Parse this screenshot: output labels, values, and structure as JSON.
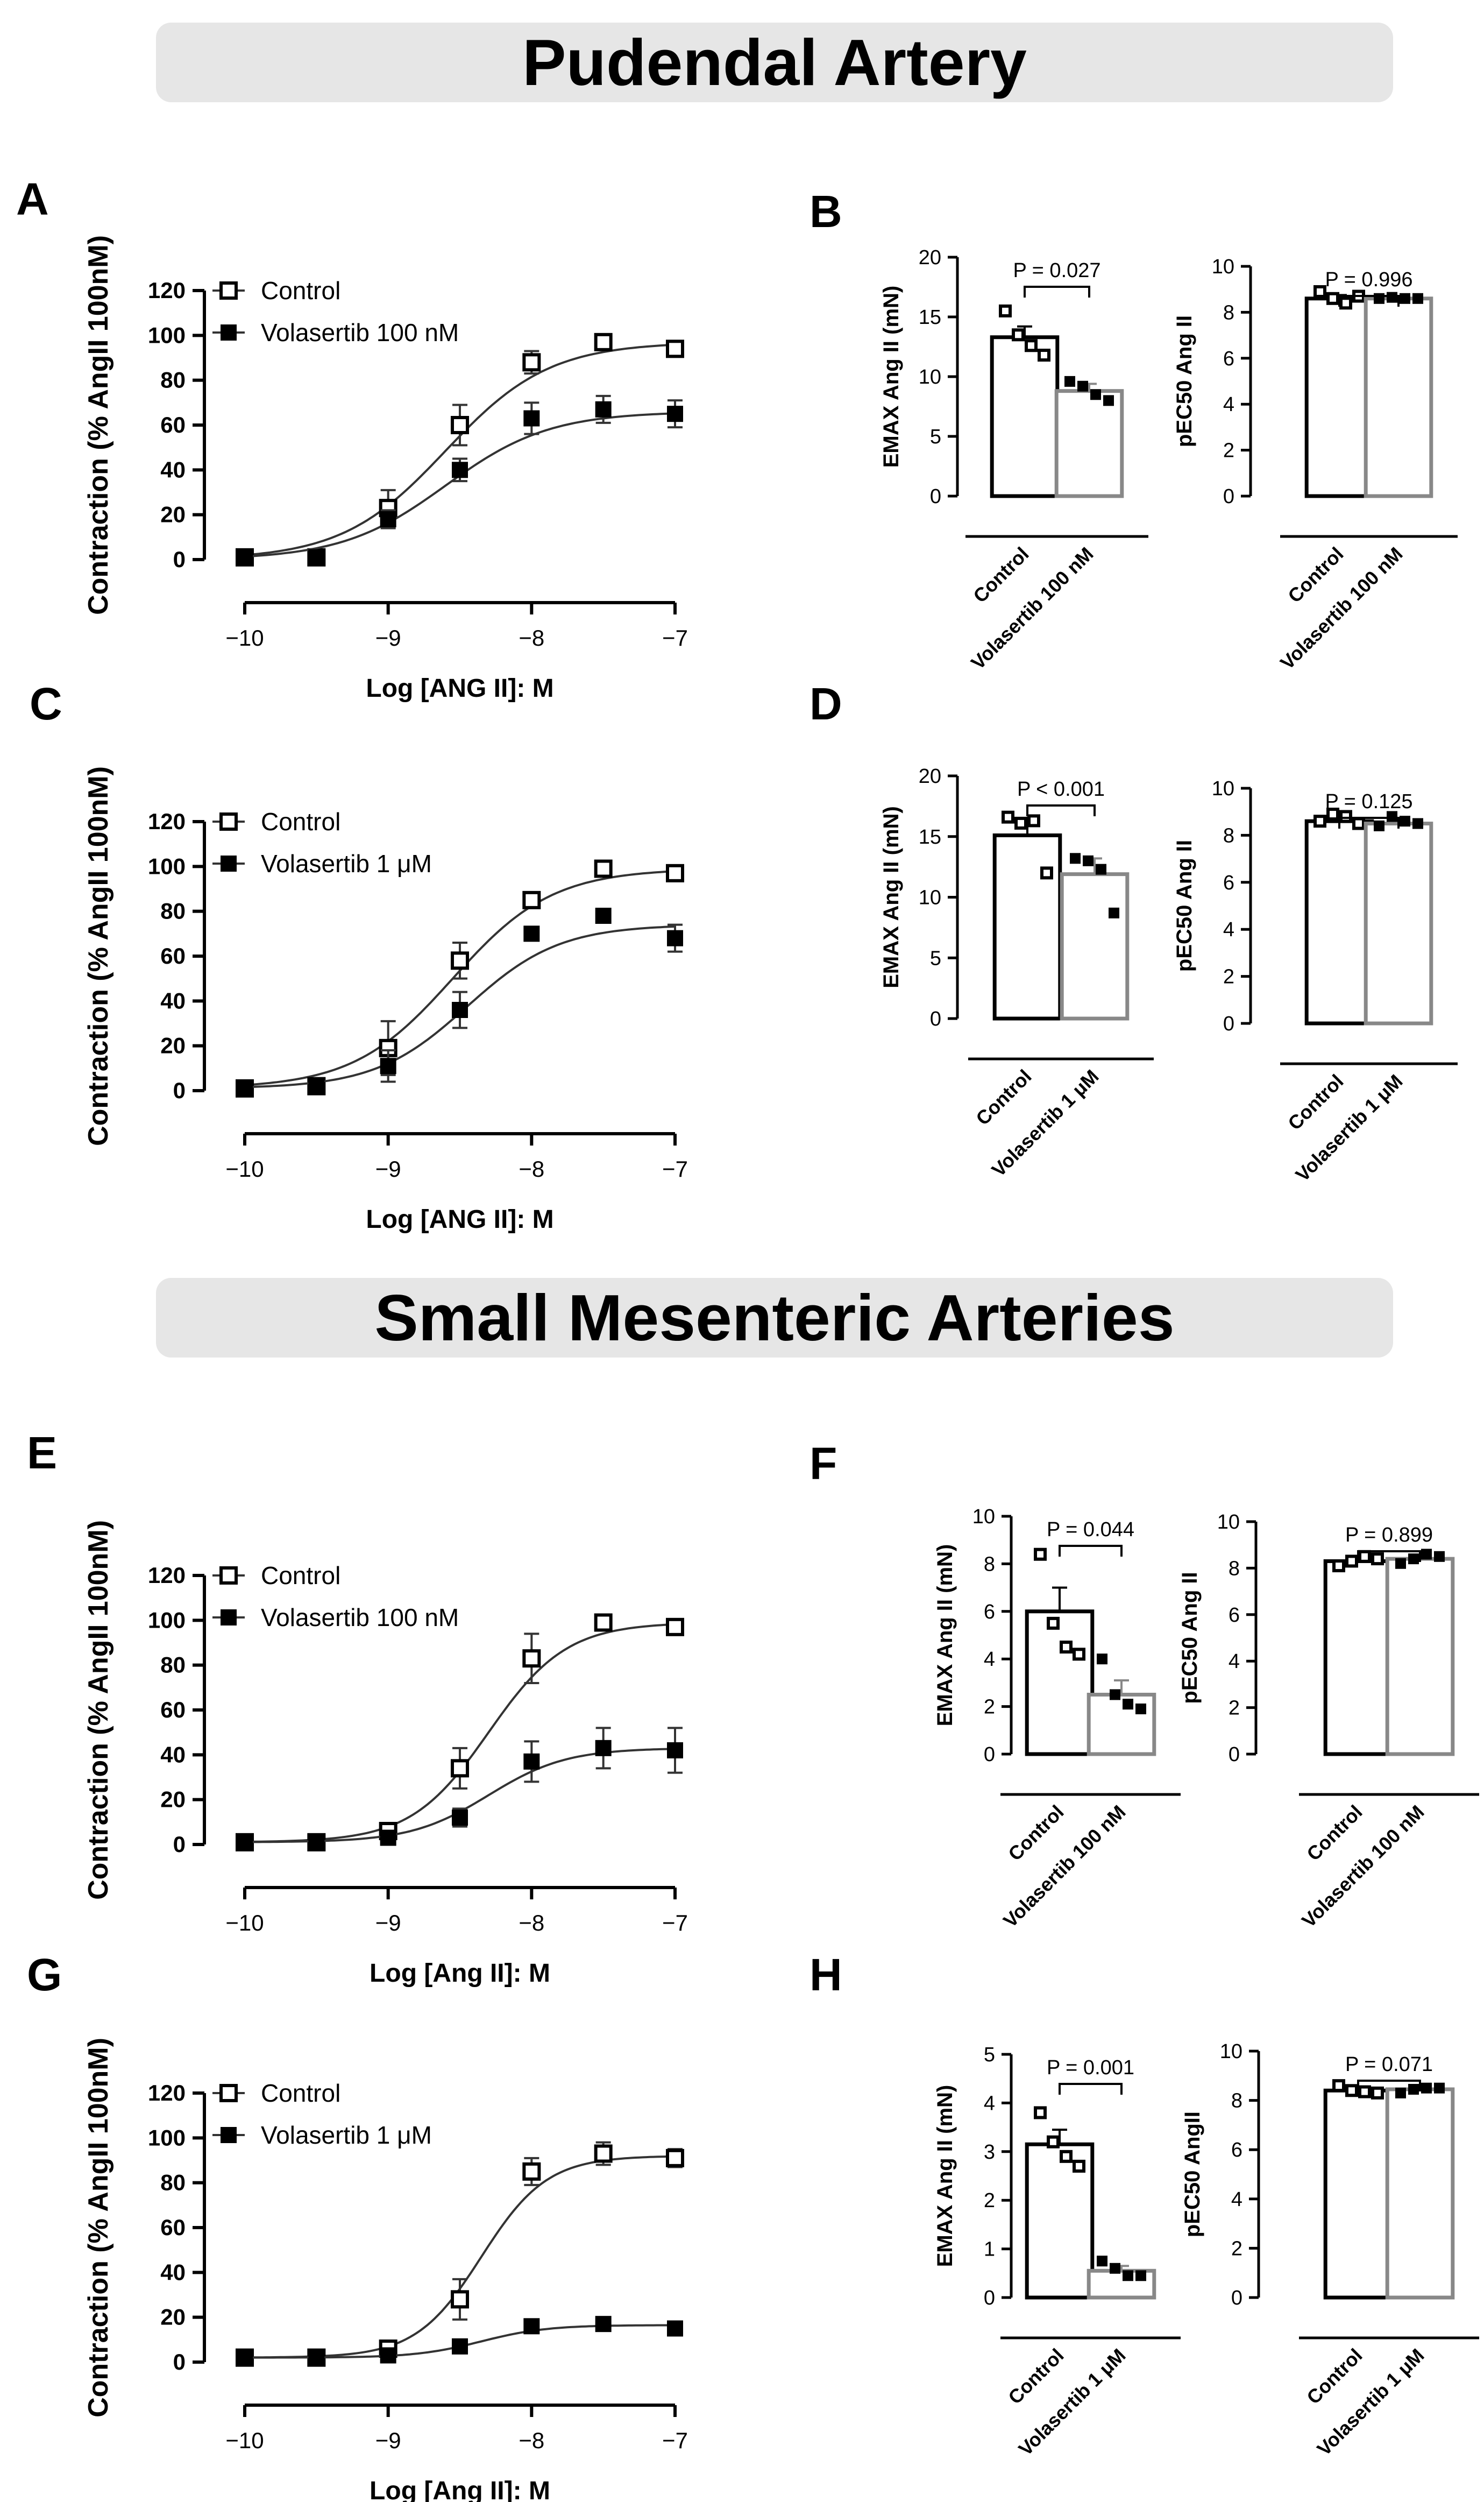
{
  "sections": {
    "top_title": "Pudendal Artery",
    "middle_title": "Small Mesenteric Arteries"
  },
  "panel_letters": [
    "A",
    "B",
    "C",
    "D",
    "E",
    "F",
    "G",
    "H"
  ],
  "chart_data": [
    {
      "panel": "A",
      "type": "line",
      "xlabel": "Log [ANG II]: M",
      "ylabel": "Contraction (% AngII 100nM)",
      "xlim": [
        -10,
        -7
      ],
      "ylim": [
        0,
        120
      ],
      "x_ticks": [
        "−10",
        "−9",
        "−8",
        "−7"
      ],
      "y_ticks": [
        "0",
        "20",
        "40",
        "60",
        "80",
        "100",
        "120"
      ],
      "legend_position": "top-left",
      "x": [
        -10,
        -9.5,
        -9,
        -8.5,
        -8,
        -7.5,
        -7
      ],
      "series": [
        {
          "name": "Control",
          "marker": "open-square",
          "values": [
            1,
            1,
            23,
            60,
            88,
            97,
            94
          ],
          "errors": [
            0,
            0,
            8,
            9,
            5,
            3,
            3
          ],
          "fit": {
            "bottom": 0,
            "top": 97,
            "logEC50": -8.6,
            "hill": 1.2
          }
        },
        {
          "name": "Volasertib 100 nM",
          "marker": "filled-square",
          "values": [
            1,
            1,
            18,
            40,
            63,
            67,
            65
          ],
          "errors": [
            0,
            0,
            4,
            5,
            7,
            6,
            6
          ],
          "fit": {
            "bottom": 0,
            "top": 66,
            "logEC50": -8.6,
            "hill": 1.2
          }
        }
      ]
    },
    {
      "panel": "B-left",
      "type": "bar",
      "ylabel": "EMAX Ang II (mN)",
      "ylim": [
        0,
        20
      ],
      "y_ticks": [
        "0",
        "5",
        "10",
        "15",
        "20"
      ],
      "categories": [
        "Control",
        "Volasertib 100 nM"
      ],
      "values": [
        13.3,
        8.8
      ],
      "errors": [
        0.9,
        0.6
      ],
      "points": [
        [
          15.5,
          13.5,
          12.6,
          11.8
        ],
        [
          9.6,
          9.2,
          8.5,
          8.0
        ]
      ],
      "pvalue": "P = 0.027"
    },
    {
      "panel": "B-right",
      "type": "bar",
      "ylabel": "pEC50 Ang II",
      "ylim": [
        0,
        10
      ],
      "y_ticks": [
        "0",
        "2",
        "4",
        "6",
        "8",
        "10"
      ],
      "categories": [
        "Control",
        "Volasertib 100 nM"
      ],
      "values": [
        8.6,
        8.6
      ],
      "errors": [
        0.15,
        0.05
      ],
      "points": [
        [
          8.9,
          8.6,
          8.4,
          8.7
        ],
        [
          8.6,
          8.65,
          8.6,
          8.6
        ]
      ],
      "pvalue": "P = 0.996"
    },
    {
      "panel": "C",
      "type": "line",
      "xlabel": "Log [ANG II]: M",
      "ylabel": "Contraction (% AngII 100nM)",
      "xlim": [
        -10,
        -7
      ],
      "ylim": [
        0,
        120
      ],
      "x_ticks": [
        "−10",
        "−9",
        "−8",
        "−7"
      ],
      "y_ticks": [
        "0",
        "20",
        "40",
        "60",
        "80",
        "100",
        "120"
      ],
      "legend_position": "top-left",
      "x": [
        -10,
        -9.5,
        -9,
        -8.5,
        -8,
        -7.5,
        -7
      ],
      "series": [
        {
          "name": "Control",
          "marker": "open-square",
          "values": [
            1,
            2,
            19,
            58,
            85,
            99,
            97
          ],
          "errors": [
            0,
            0,
            12,
            8,
            3,
            2,
            2
          ],
          "fit": {
            "bottom": 1,
            "top": 99,
            "logEC50": -8.55,
            "hill": 1.25
          }
        },
        {
          "name": "Volasertib 1 μM",
          "marker": "filled-square",
          "values": [
            1,
            2,
            11,
            36,
            70,
            78,
            68
          ],
          "errors": [
            0,
            0,
            7,
            8,
            3,
            2,
            6
          ],
          "fit": {
            "bottom": 1,
            "top": 74,
            "logEC50": -8.45,
            "hill": 1.35
          }
        }
      ]
    },
    {
      "panel": "D-left",
      "type": "bar",
      "ylabel": "EMAX Ang II (mN)",
      "ylim": [
        0,
        20
      ],
      "y_ticks": [
        "0",
        "5",
        "10",
        "15",
        "20"
      ],
      "categories": [
        "Control",
        "Volasertib 1 μM"
      ],
      "values": [
        15.1,
        11.9
      ],
      "errors": [
        1.2,
        1.3
      ],
      "points": [
        [
          16.6,
          16.1,
          16.3,
          12.0
        ],
        [
          13.2,
          13.0,
          12.3,
          8.7
        ]
      ],
      "pvalue": "P < 0.001"
    },
    {
      "panel": "D-right",
      "type": "bar",
      "ylabel": "pEC50 Ang II",
      "ylim": [
        0,
        10
      ],
      "y_ticks": [
        "0",
        "2",
        "4",
        "6",
        "8",
        "10"
      ],
      "categories": [
        "Control",
        "Volasertib 1 μM"
      ],
      "values": [
        8.6,
        8.5
      ],
      "errors": [
        0.15,
        0.15
      ],
      "points": [
        [
          8.6,
          8.9,
          8.8,
          8.5
        ],
        [
          8.4,
          8.8,
          8.6,
          8.5
        ]
      ],
      "pvalue": "P = 0.125"
    },
    {
      "panel": "E",
      "type": "line",
      "xlabel": "Log [Ang II]: M",
      "ylabel": "Contraction (% AngII 100nM)",
      "xlim": [
        -10,
        -7
      ],
      "ylim": [
        0,
        120
      ],
      "x_ticks": [
        "−10",
        "−9",
        "−8",
        "−7"
      ],
      "y_ticks": [
        "0",
        "20",
        "40",
        "60",
        "80",
        "100",
        "120"
      ],
      "legend_position": "top-left",
      "x": [
        -10,
        -9.5,
        -9,
        -8.5,
        -8,
        -7.5,
        -7
      ],
      "series": [
        {
          "name": "Control",
          "marker": "open-square",
          "values": [
            1,
            1,
            6,
            34,
            83,
            99,
            97
          ],
          "errors": [
            0,
            0,
            2,
            9,
            11,
            2,
            2
          ],
          "fit": {
            "bottom": 1,
            "top": 99,
            "logEC50": -8.3,
            "hill": 1.6
          }
        },
        {
          "name": "Volasertib 100 nM",
          "marker": "filled-square",
          "values": [
            1,
            1,
            3,
            12,
            37,
            43,
            42
          ],
          "errors": [
            0,
            0,
            1,
            4,
            9,
            9,
            10
          ],
          "fit": {
            "bottom": 1,
            "top": 43,
            "logEC50": -8.3,
            "hill": 1.6
          }
        }
      ]
    },
    {
      "panel": "F-left",
      "type": "bar",
      "ylabel": "EMAX Ang II (mN)",
      "ylim": [
        0,
        10
      ],
      "y_ticks": [
        "0",
        "2",
        "4",
        "6",
        "8",
        "10"
      ],
      "categories": [
        "Control",
        "Volasertib 100 nM"
      ],
      "values": [
        6.0,
        2.5
      ],
      "errors": [
        1.0,
        0.6
      ],
      "points": [
        [
          8.4,
          5.5,
          4.5,
          4.2
        ],
        [
          4.0,
          2.5,
          2.1,
          1.9
        ]
      ],
      "pvalue": "P = 0.044"
    },
    {
      "panel": "F-right",
      "type": "bar",
      "ylabel": "pEC50 Ang II",
      "ylim": [
        0,
        10
      ],
      "y_ticks": [
        "0",
        "2",
        "4",
        "6",
        "8",
        "10"
      ],
      "categories": [
        "Control",
        "Volasertib 100 nM"
      ],
      "values": [
        8.3,
        8.4
      ],
      "errors": [
        0.1,
        0.05
      ],
      "points": [
        [
          8.1,
          8.3,
          8.5,
          8.4
        ],
        [
          8.2,
          8.4,
          8.6,
          8.5
        ]
      ],
      "pvalue": "P = 0.899"
    },
    {
      "panel": "G",
      "type": "line",
      "xlabel": "Log [Ang II]: M",
      "ylabel": "Contraction (% AngII 100nM)",
      "xlim": [
        -10,
        -7
      ],
      "ylim": [
        0,
        120
      ],
      "x_ticks": [
        "−10",
        "−9",
        "−8",
        "−7"
      ],
      "y_ticks": [
        "0",
        "20",
        "40",
        "60",
        "80",
        "100",
        "120"
      ],
      "legend_position": "top-left",
      "x": [
        -10,
        -9.5,
        -9,
        -8.5,
        -8,
        -7.5,
        -7
      ],
      "series": [
        {
          "name": "Control",
          "marker": "open-square",
          "values": [
            2,
            2,
            6,
            28,
            85,
            93,
            91
          ],
          "errors": [
            0,
            0,
            2,
            9,
            6,
            5,
            4
          ],
          "fit": {
            "bottom": 2,
            "top": 92,
            "logEC50": -8.35,
            "hill": 1.9
          }
        },
        {
          "name": "Volasertib 1 μM",
          "marker": "filled-square",
          "values": [
            2,
            2,
            3,
            7,
            16,
            17,
            15
          ],
          "errors": [
            0,
            0,
            1,
            1,
            1,
            1,
            1
          ],
          "fit": {
            "bottom": 2,
            "top": 16.5,
            "logEC50": -8.35,
            "hill": 1.9
          }
        }
      ]
    },
    {
      "panel": "H-left",
      "type": "bar",
      "ylabel": "EMAX Ang II (mN)",
      "ylim": [
        0,
        5
      ],
      "y_ticks": [
        "0",
        "1",
        "2",
        "3",
        "4",
        "5"
      ],
      "categories": [
        "Control",
        "Volasertib 1 μM"
      ],
      "values": [
        3.15,
        0.55
      ],
      "errors": [
        0.3,
        0.1
      ],
      "points": [
        [
          3.8,
          3.2,
          2.9,
          2.7
        ],
        [
          0.75,
          0.6,
          0.45,
          0.45
        ]
      ],
      "pvalue": "P = 0.001"
    },
    {
      "panel": "H-right",
      "type": "bar",
      "ylabel": "pEC50 AngII",
      "ylim": [
        0,
        10
      ],
      "y_ticks": [
        "0",
        "2",
        "4",
        "6",
        "8",
        "10"
      ],
      "categories": [
        "Control",
        "Volasertib 1 μM"
      ],
      "values": [
        8.4,
        8.45
      ],
      "errors": [
        0.1,
        0.05
      ],
      "points": [
        [
          8.6,
          8.4,
          8.35,
          8.3
        ],
        [
          8.3,
          8.45,
          8.5,
          8.5
        ]
      ],
      "pvalue": "P = 0.071"
    }
  ]
}
